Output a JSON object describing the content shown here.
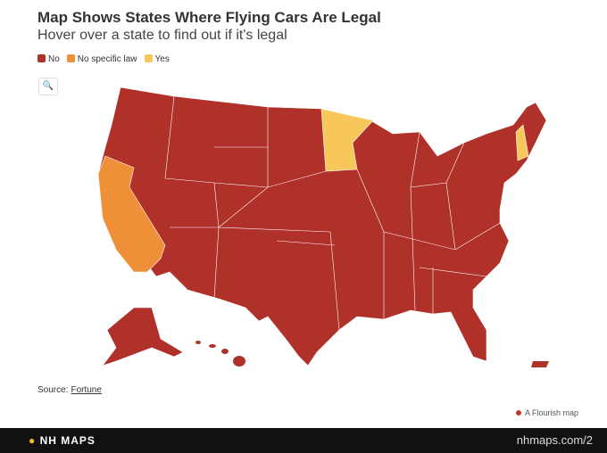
{
  "header": {
    "title": "Map Shows States Where Flying Cars Are Legal",
    "subtitle": "Hover over a state to find out if it's legal"
  },
  "legend": [
    {
      "label": "No",
      "color": "#b0302a"
    },
    {
      "label": "No specific law",
      "color": "#ef8f38"
    },
    {
      "label": "Yes",
      "color": "#f7c75a"
    }
  ],
  "source": {
    "label": "Source:",
    "link": "Fortune"
  },
  "credit": "A Flourish map",
  "footer": {
    "brand": "NH MAPS",
    "url": "nhmaps.com/2"
  }
}
